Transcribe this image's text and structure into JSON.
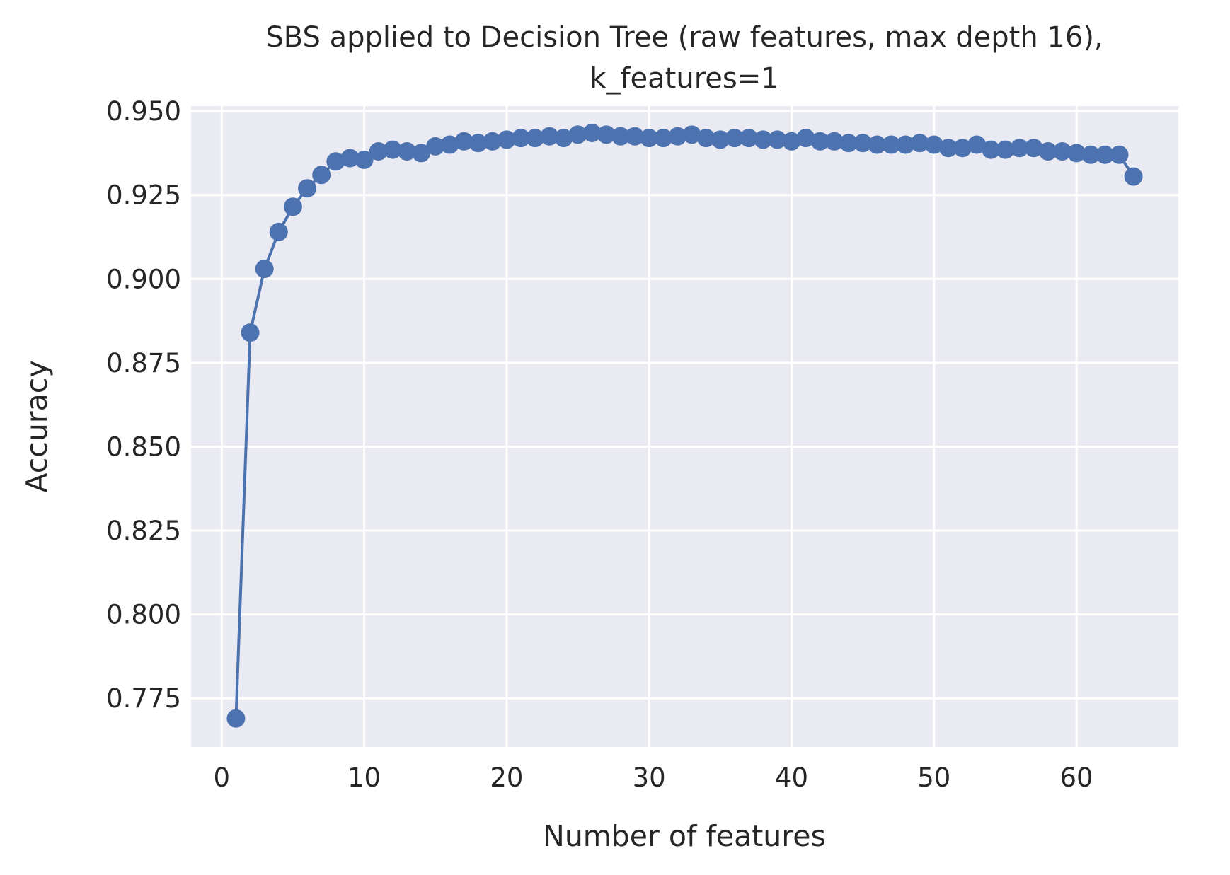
{
  "chart_data": {
    "type": "line",
    "title": "SBS applied to Decision Tree (raw features, max depth 16),",
    "subtitle": "k_features=1",
    "xlabel": "Number of features",
    "ylabel": "Accuracy",
    "xlim": [
      -2.15,
      67.15
    ],
    "ylim": [
      0.7605,
      0.9515
    ],
    "xticks": [
      0,
      10,
      20,
      30,
      40,
      50,
      60
    ],
    "xtick_labels": [
      "0",
      "10",
      "20",
      "30",
      "40",
      "50",
      "60"
    ],
    "yticks": [
      0.775,
      0.8,
      0.825,
      0.85,
      0.875,
      0.9,
      0.925,
      0.95
    ],
    "ytick_labels": [
      "0.775",
      "0.800",
      "0.825",
      "0.850",
      "0.875",
      "0.900",
      "0.925",
      "0.950"
    ],
    "grid": true,
    "colors": {
      "line": "#4c72b0",
      "plot_background": "#eaeaf2",
      "grid": "#ffffff",
      "text": "#262626"
    },
    "series": [
      {
        "x": [
          1,
          2,
          3,
          4,
          5,
          6,
          7,
          8,
          9,
          10,
          11,
          12,
          13,
          14,
          15,
          16,
          17,
          18,
          19,
          20,
          21,
          22,
          23,
          24,
          25,
          26,
          27,
          28,
          29,
          30,
          31,
          32,
          33,
          34,
          35,
          36,
          37,
          38,
          39,
          40,
          41,
          42,
          43,
          44,
          45,
          46,
          47,
          48,
          49,
          50,
          51,
          52,
          53,
          54,
          55,
          56,
          57,
          58,
          59,
          60,
          61,
          62,
          63,
          64
        ],
        "y": [
          0.769,
          0.884,
          0.903,
          0.914,
          0.9215,
          0.927,
          0.931,
          0.935,
          0.936,
          0.9355,
          0.938,
          0.9385,
          0.938,
          0.9375,
          0.9395,
          0.94,
          0.941,
          0.9405,
          0.941,
          0.9415,
          0.942,
          0.942,
          0.9425,
          0.942,
          0.943,
          0.9435,
          0.943,
          0.9425,
          0.9425,
          0.942,
          0.942,
          0.9425,
          0.943,
          0.942,
          0.9415,
          0.942,
          0.942,
          0.9415,
          0.9415,
          0.941,
          0.942,
          0.941,
          0.941,
          0.9405,
          0.9405,
          0.94,
          0.94,
          0.94,
          0.9405,
          0.94,
          0.939,
          0.939,
          0.94,
          0.9385,
          0.9385,
          0.939,
          0.939,
          0.938,
          0.938,
          0.9375,
          0.937,
          0.937,
          0.937,
          0.9305
        ]
      }
    ]
  }
}
